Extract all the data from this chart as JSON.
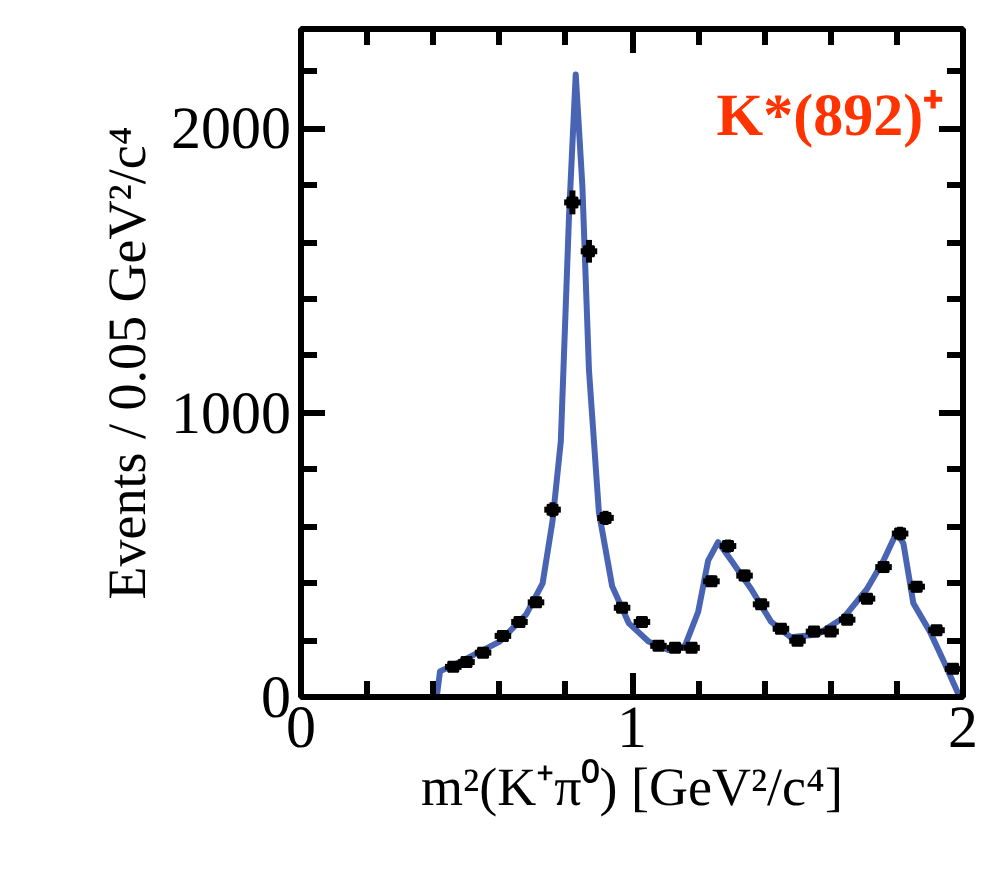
{
  "chart_data": {
    "type": "scatter",
    "xlabel": "m²(K⁺π⁰) [GeV²/c⁴]",
    "ylabel": "Events / 0.05 GeV²/c⁴",
    "annotations": [
      "K*(892)⁺"
    ],
    "xlim": [
      0,
      2
    ],
    "ylim": [
      0,
      2350
    ],
    "xticks": [
      0,
      {
        "value": 0.2,
        "label": null
      },
      {
        "value": 0.4,
        "label": null
      },
      {
        "value": 0.6,
        "label": null
      },
      {
        "value": 0.8,
        "label": null
      },
      1,
      {
        "value": 1.2,
        "label": null
      },
      {
        "value": 1.4,
        "label": null
      },
      {
        "value": 1.6,
        "label": null
      },
      {
        "value": 1.8,
        "label": null
      },
      2
    ],
    "yticks": [
      0,
      {
        "value": 200,
        "label": null
      },
      {
        "value": 400,
        "label": null
      },
      {
        "value": 600,
        "label": null
      },
      {
        "value": 800,
        "label": null
      },
      1000,
      {
        "value": 1200,
        "label": null
      },
      {
        "value": 1400,
        "label": null
      },
      {
        "value": 1600,
        "label": null
      },
      {
        "value": 1800,
        "label": null
      },
      2000,
      {
        "value": 2200,
        "label": null
      }
    ],
    "series": [
      {
        "type": "line",
        "color": "#4a64b4",
        "x": [
          0.41,
          0.42,
          0.5,
          0.6,
          0.68,
          0.73,
          0.76,
          0.785,
          0.81,
          0.83,
          0.85,
          0.87,
          0.9,
          0.94,
          0.99,
          1.05,
          1.11,
          1.16,
          1.2,
          1.23,
          1.26,
          1.3,
          1.36,
          1.42,
          1.48,
          1.56,
          1.64,
          1.71,
          1.76,
          1.8,
          1.82,
          1.85,
          1.9,
          1.94,
          1.99
        ],
        "values": [
          0,
          90,
          135,
          195,
          290,
          400,
          620,
          900,
          1700,
          2190,
          1800,
          1150,
          650,
          390,
          260,
          195,
          165,
          180,
          300,
          480,
          545,
          480,
          380,
          265,
          210,
          220,
          280,
          380,
          480,
          580,
          540,
          330,
          230,
          130,
          0
        ]
      },
      {
        "color": "#000000",
        "marker": "square",
        "x": [
          0.46,
          0.5,
          0.55,
          0.61,
          0.66,
          0.71,
          0.76,
          0.82,
          0.87,
          0.92,
          0.97,
          1.03,
          1.08,
          1.13,
          1.18,
          1.24,
          1.29,
          1.34,
          1.39,
          1.45,
          1.5,
          1.55,
          1.6,
          1.65,
          1.71,
          1.76,
          1.81,
          1.86,
          1.92,
          1.97
        ],
        "values": [
          106,
          123,
          156,
          215,
          264,
          333,
          659,
          1740,
          1568,
          630,
          314,
          264,
          180,
          173,
          173,
          407,
          531,
          427,
          326,
          240,
          198,
          230,
          230,
          272,
          346,
          457,
          575,
          388,
          235,
          99
        ],
        "errors": [
          10,
          11,
          12,
          15,
          16,
          18,
          26,
          42,
          40,
          25,
          18,
          16,
          13,
          13,
          13,
          20,
          23,
          21,
          18,
          15,
          14,
          15,
          15,
          16,
          19,
          21,
          24,
          20,
          15,
          10
        ],
        "xerrors": [
          0.025,
          0.025,
          0.025,
          0.025,
          0.025,
          0.025,
          0.025,
          0.025,
          0.025,
          0.025,
          0.025,
          0.025,
          0.025,
          0.025,
          0.025,
          0.025,
          0.025,
          0.025,
          0.025,
          0.025,
          0.025,
          0.025,
          0.025,
          0.025,
          0.025,
          0.025,
          0.025,
          0.025,
          0.025,
          0.025
        ]
      }
    ]
  }
}
